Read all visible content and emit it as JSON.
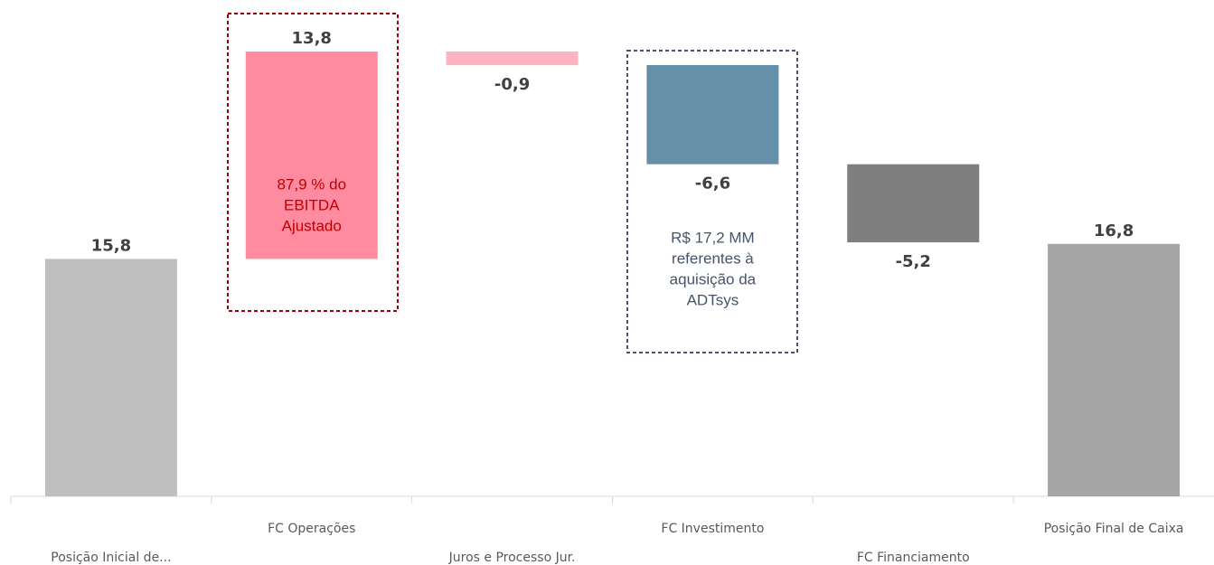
{
  "chart_data": {
    "type": "waterfall",
    "categories": [
      "Posição Inicial de...",
      "FC Operações",
      "Juros e Processo Jur.",
      "FC Investimento",
      "FC Financiamento",
      "Posição Final de Caixa"
    ],
    "values": [
      15.8,
      13.8,
      -0.9,
      -6.6,
      -5.2,
      16.8
    ],
    "value_labels": [
      "15,8",
      "13,8",
      "-0,9",
      "-6,6",
      "-5,2",
      "16,8"
    ],
    "colors": [
      "#bfbfbf",
      "#ff8ba0",
      "#ffb3c0",
      "#668fa8",
      "#7f7f7f",
      "#a6a6a6"
    ],
    "annotations": [
      {
        "lines": [
          "87,9 % do",
          "EBITDA",
          "Ajustado"
        ],
        "color": "#c00000"
      },
      {
        "lines": [
          "R$ 17,2 MM",
          "referentes à",
          "aquisição da",
          "ADTsys"
        ],
        "color": "#44546a"
      }
    ]
  }
}
